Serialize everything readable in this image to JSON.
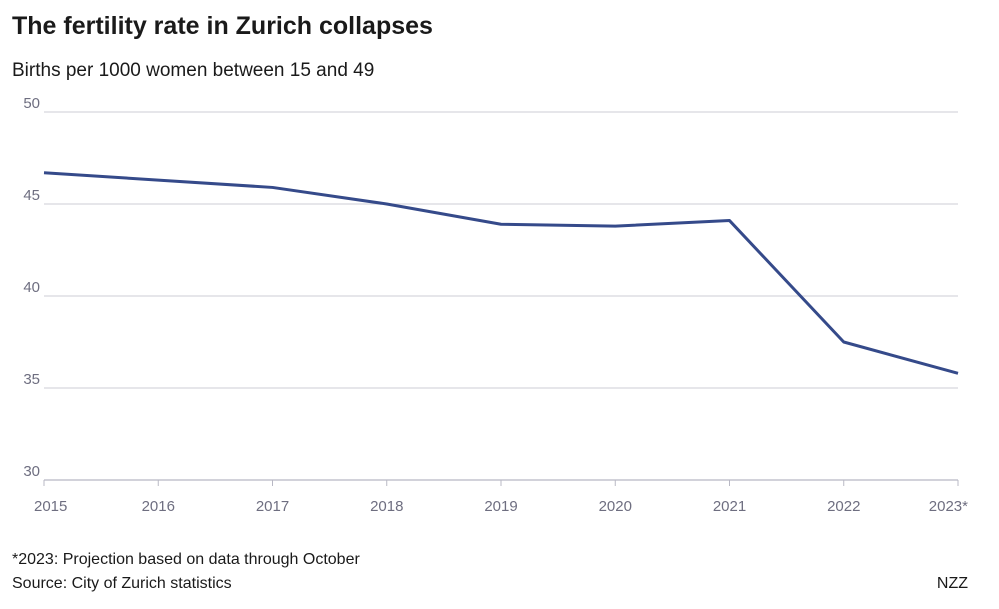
{
  "chart_data": {
    "type": "line",
    "title": "The fertility rate in Zurich collapses",
    "subtitle": "Births per 1000 women between 15 and 49",
    "categories": [
      "2015",
      "2016",
      "2017",
      "2018",
      "2019",
      "2020",
      "2021",
      "2022",
      "2023*"
    ],
    "series": [
      {
        "name": "Fertility rate",
        "values": [
          46.7,
          46.3,
          45.9,
          45.0,
          43.9,
          43.8,
          44.1,
          37.5,
          35.8
        ],
        "color": "#354a8a"
      }
    ],
    "yticks": [
      30,
      35,
      40,
      45,
      50
    ],
    "ylim": [
      30,
      50
    ],
    "grid": true,
    "xlabel": "",
    "ylabel": ""
  },
  "footer": {
    "note": "*2023: Projection based on data through October",
    "source": "Source: City of Zurich statistics",
    "brand": "NZZ"
  }
}
